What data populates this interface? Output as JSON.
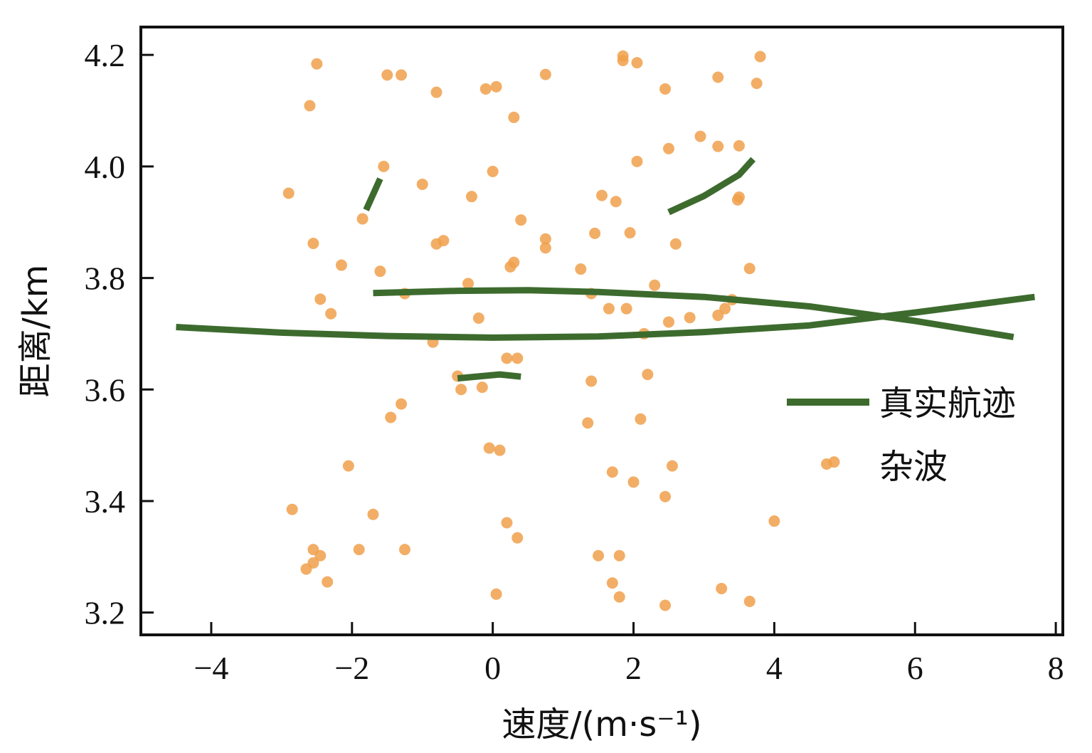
{
  "chart_data": {
    "type": "scatter",
    "xlabel": "速度/(m·s⁻¹)",
    "ylabel": "距离/km",
    "xlim": [
      -5.0,
      8.1
    ],
    "ylim": [
      3.16,
      4.25
    ],
    "xticks": [
      -4,
      -2,
      0,
      2,
      4,
      6,
      8
    ],
    "xtick_labels": [
      "−4",
      "−2",
      "0",
      "2",
      "4",
      "6",
      "8"
    ],
    "yticks": [
      3.2,
      3.4,
      3.6,
      3.8,
      4.0,
      4.2
    ],
    "ytick_labels": [
      "3.2",
      "3.4",
      "3.6",
      "3.8",
      "4.0",
      "4.2"
    ],
    "grid": false,
    "legend_position": "right",
    "colors": {
      "track": "#3d6b2e",
      "clutter": "#f0a04b",
      "axis": "#111111"
    },
    "series": [
      {
        "name": "真实航迹",
        "kind": "line",
        "segments": [
          [
            [
              -4.5,
              3.712
            ],
            [
              -3,
              3.702
            ],
            [
              -1.5,
              3.696
            ],
            [
              0,
              3.693
            ],
            [
              1.5,
              3.695
            ],
            [
              3,
              3.703
            ],
            [
              4.5,
              3.715
            ],
            [
              6,
              3.738
            ],
            [
              7.7,
              3.766
            ]
          ],
          [
            [
              -1.7,
              3.773
            ],
            [
              -0.5,
              3.777
            ],
            [
              0.5,
              3.778
            ],
            [
              1.5,
              3.775
            ],
            [
              3,
              3.766
            ],
            [
              4.5,
              3.749
            ],
            [
              6,
              3.723
            ],
            [
              7.4,
              3.694
            ]
          ],
          [
            [
              2.5,
              3.918
            ],
            [
              3.0,
              3.947
            ],
            [
              3.5,
              3.985
            ],
            [
              3.7,
              4.013
            ]
          ],
          [
            [
              -1.8,
              3.922
            ],
            [
              -1.6,
              3.978
            ]
          ],
          [
            [
              -0.5,
              3.62
            ],
            [
              0.1,
              3.627
            ],
            [
              0.4,
              3.623
            ]
          ]
        ]
      },
      {
        "name": "杂波",
        "kind": "scatter",
        "points": [
          [
            -2.5,
            4.184
          ],
          [
            -1.5,
            4.164
          ],
          [
            -1.3,
            4.164
          ],
          [
            -0.8,
            4.133
          ],
          [
            -0.1,
            4.139
          ],
          [
            0.05,
            4.143
          ],
          [
            0.75,
            4.165
          ],
          [
            1.85,
            4.198
          ],
          [
            1.85,
            4.19
          ],
          [
            2.05,
            4.186
          ],
          [
            3.2,
            4.16
          ],
          [
            3.8,
            4.197
          ],
          [
            3.75,
            4.149
          ],
          [
            2.45,
            4.139
          ],
          [
            -2.6,
            4.109
          ],
          [
            0.3,
            4.088
          ],
          [
            2.95,
            4.054
          ],
          [
            3.2,
            4.036
          ],
          [
            3.5,
            4.037
          ],
          [
            2.5,
            4.032
          ],
          [
            2.05,
            4.009
          ],
          [
            -1.55,
            4.0
          ],
          [
            0.0,
            3.991
          ],
          [
            -2.9,
            3.952
          ],
          [
            -1.0,
            3.968
          ],
          [
            -0.3,
            3.946
          ],
          [
            1.55,
            3.948
          ],
          [
            1.75,
            3.937
          ],
          [
            3.5,
            3.945
          ],
          [
            3.48,
            3.94
          ],
          [
            -1.85,
            3.906
          ],
          [
            0.4,
            3.904
          ],
          [
            -0.7,
            3.867
          ],
          [
            -0.8,
            3.861
          ],
          [
            1.45,
            3.88
          ],
          [
            1.95,
            3.881
          ],
          [
            0.75,
            3.87
          ],
          [
            0.75,
            3.854
          ],
          [
            -2.55,
            3.862
          ],
          [
            2.6,
            3.861
          ],
          [
            -2.15,
            3.823
          ],
          [
            -1.6,
            3.812
          ],
          [
            0.3,
            3.828
          ],
          [
            0.25,
            3.82
          ],
          [
            1.25,
            3.816
          ],
          [
            3.65,
            3.817
          ],
          [
            -0.35,
            3.79
          ],
          [
            2.3,
            3.787
          ],
          [
            -1.25,
            3.772
          ],
          [
            1.4,
            3.772
          ],
          [
            -2.45,
            3.762
          ],
          [
            3.4,
            3.761
          ],
          [
            -2.3,
            3.736
          ],
          [
            -0.2,
            3.728
          ],
          [
            1.65,
            3.745
          ],
          [
            1.9,
            3.745
          ],
          [
            2.8,
            3.729
          ],
          [
            3.2,
            3.733
          ],
          [
            3.3,
            3.745
          ],
          [
            2.5,
            3.721
          ],
          [
            2.15,
            3.7
          ],
          [
            -0.85,
            3.685
          ],
          [
            0.2,
            3.656
          ],
          [
            0.35,
            3.656
          ],
          [
            -0.5,
            3.624
          ],
          [
            1.4,
            3.615
          ],
          [
            2.2,
            3.627
          ],
          [
            -0.45,
            3.6
          ],
          [
            -0.15,
            3.604
          ],
          [
            -1.3,
            3.574
          ],
          [
            -1.45,
            3.55
          ],
          [
            1.35,
            3.54
          ],
          [
            2.1,
            3.547
          ],
          [
            -0.05,
            3.495
          ],
          [
            0.1,
            3.491
          ],
          [
            -2.05,
            3.463
          ],
          [
            1.7,
            3.452
          ],
          [
            2.55,
            3.463
          ],
          [
            2.0,
            3.434
          ],
          [
            2.45,
            3.408
          ],
          [
            4.85,
            3.47
          ],
          [
            -2.85,
            3.385
          ],
          [
            -1.7,
            3.376
          ],
          [
            0.2,
            3.361
          ],
          [
            0.35,
            3.334
          ],
          [
            4.0,
            3.364
          ],
          [
            -2.55,
            3.313
          ],
          [
            -1.9,
            3.313
          ],
          [
            -1.25,
            3.313
          ],
          [
            -2.45,
            3.302
          ],
          [
            -2.55,
            3.289
          ],
          [
            -2.65,
            3.278
          ],
          [
            1.5,
            3.302
          ],
          [
            1.8,
            3.302
          ],
          [
            -2.35,
            3.255
          ],
          [
            1.7,
            3.253
          ],
          [
            0.05,
            3.233
          ],
          [
            1.8,
            3.228
          ],
          [
            3.25,
            3.243
          ],
          [
            3.65,
            3.22
          ],
          [
            2.45,
            3.213
          ]
        ]
      }
    ]
  }
}
